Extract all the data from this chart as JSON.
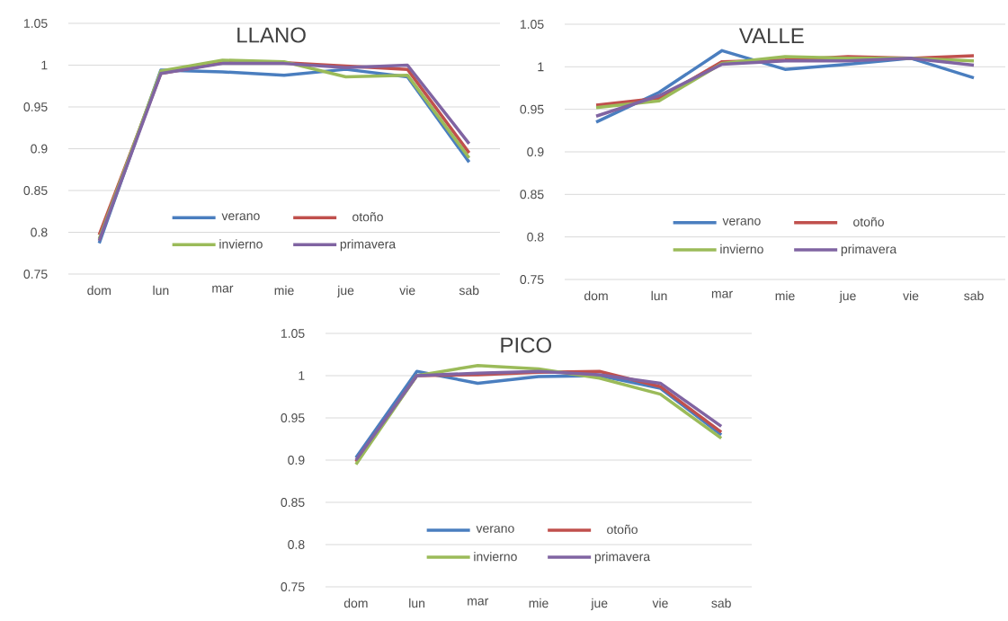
{
  "chart_data": [
    {
      "type": "line",
      "title": "LLANO",
      "categories": [
        "dom",
        "lun",
        "mar",
        "mie",
        "jue",
        "vie",
        "sab"
      ],
      "ylim": [
        0.75,
        1.05
      ],
      "yticks": [
        0.75,
        0.8,
        0.85,
        0.9,
        0.95,
        1,
        1.05
      ],
      "grid": "y",
      "legend": "bottom",
      "series": [
        {
          "name": "verano",
          "color": "#4a7ebf",
          "values": [
            0.787,
            0.994,
            0.992,
            0.988,
            0.995,
            0.986,
            0.884
          ]
        },
        {
          "name": "otoño",
          "color": "#c0504d",
          "values": [
            0.797,
            0.99,
            1.003,
            1.003,
            0.999,
            0.995,
            0.895
          ]
        },
        {
          "name": "invierno",
          "color": "#9bbb59",
          "values": [
            0.792,
            0.993,
            1.006,
            1.004,
            0.986,
            0.988,
            0.889
          ]
        },
        {
          "name": "primavera",
          "color": "#8064a2",
          "values": [
            0.79,
            0.99,
            1.002,
            1.002,
            0.997,
            1.0,
            0.906
          ]
        }
      ]
    },
    {
      "type": "line",
      "title": "VALLE",
      "categories": [
        "dom",
        "lun",
        "mar",
        "mie",
        "jue",
        "vie",
        "sab"
      ],
      "ylim": [
        0.75,
        1.05
      ],
      "yticks": [
        0.75,
        0.8,
        0.85,
        0.9,
        0.95,
        1,
        1.05
      ],
      "grid": "y",
      "legend": "bottom",
      "series": [
        {
          "name": "verano",
          "color": "#4a7ebf",
          "values": [
            0.935,
            0.97,
            1.019,
            0.997,
            1.003,
            1.01,
            0.987
          ]
        },
        {
          "name": "otoño",
          "color": "#c0504d",
          "values": [
            0.955,
            0.963,
            1.006,
            1.008,
            1.012,
            1.01,
            1.013
          ]
        },
        {
          "name": "invierno",
          "color": "#9bbb59",
          "values": [
            0.952,
            0.96,
            1.004,
            1.012,
            1.01,
            1.01,
            1.007
          ]
        },
        {
          "name": "primavera",
          "color": "#8064a2",
          "values": [
            0.942,
            0.966,
            1.003,
            1.007,
            1.007,
            1.01,
            1.002
          ]
        }
      ]
    },
    {
      "type": "line",
      "title": "PICO",
      "categories": [
        "dom",
        "lun",
        "mar",
        "mie",
        "jue",
        "vie",
        "sab"
      ],
      "ylim": [
        0.75,
        1.05
      ],
      "yticks": [
        0.75,
        0.8,
        0.85,
        0.9,
        0.95,
        1,
        1.05
      ],
      "grid": "y",
      "legend": "bottom",
      "series": [
        {
          "name": "verano",
          "color": "#4a7ebf",
          "values": [
            0.903,
            1.005,
            0.991,
            0.999,
            1.0,
            0.985,
            0.93
          ]
        },
        {
          "name": "otoño",
          "color": "#c0504d",
          "values": [
            0.898,
            1.0,
            1.001,
            1.004,
            1.005,
            0.987,
            0.933
          ]
        },
        {
          "name": "invierno",
          "color": "#9bbb59",
          "values": [
            0.895,
            1.0,
            1.012,
            1.008,
            0.997,
            0.978,
            0.926
          ]
        },
        {
          "name": "primavera",
          "color": "#8064a2",
          "values": [
            0.9,
            1.0,
            1.003,
            1.005,
            1.001,
            0.991,
            0.94
          ]
        }
      ]
    }
  ]
}
